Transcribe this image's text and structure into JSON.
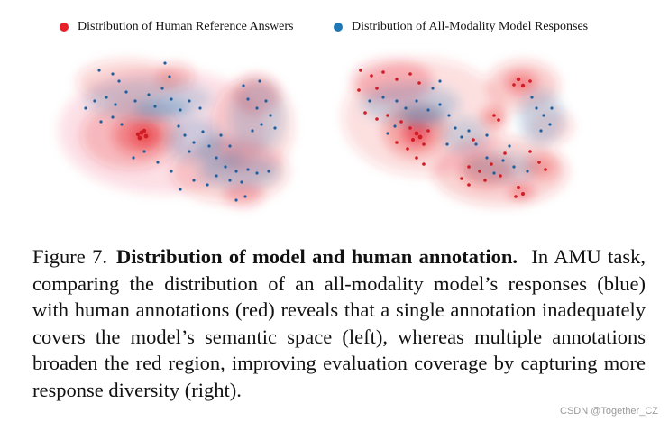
{
  "legend": {
    "red_label": "Distribution of Human Reference Answers",
    "blue_label": "Distribution of All-Modality Model Responses",
    "red_color": "#e8202a",
    "blue_color": "#1f77b4"
  },
  "caption": {
    "label": "Figure 7.",
    "title": "Distribution of model and human annotation.",
    "body": "In AMU task, comparing the distribution of an all-modality model’s responses (blue) with human annotations (red) reveals that a single annotation inadequately covers the model’s semantic space (left), whereas multiple annotations broaden the red region, improving evaluation coverage by capturing more response diversity (right)."
  },
  "watermark": "CSDN @Together_CZ"
}
